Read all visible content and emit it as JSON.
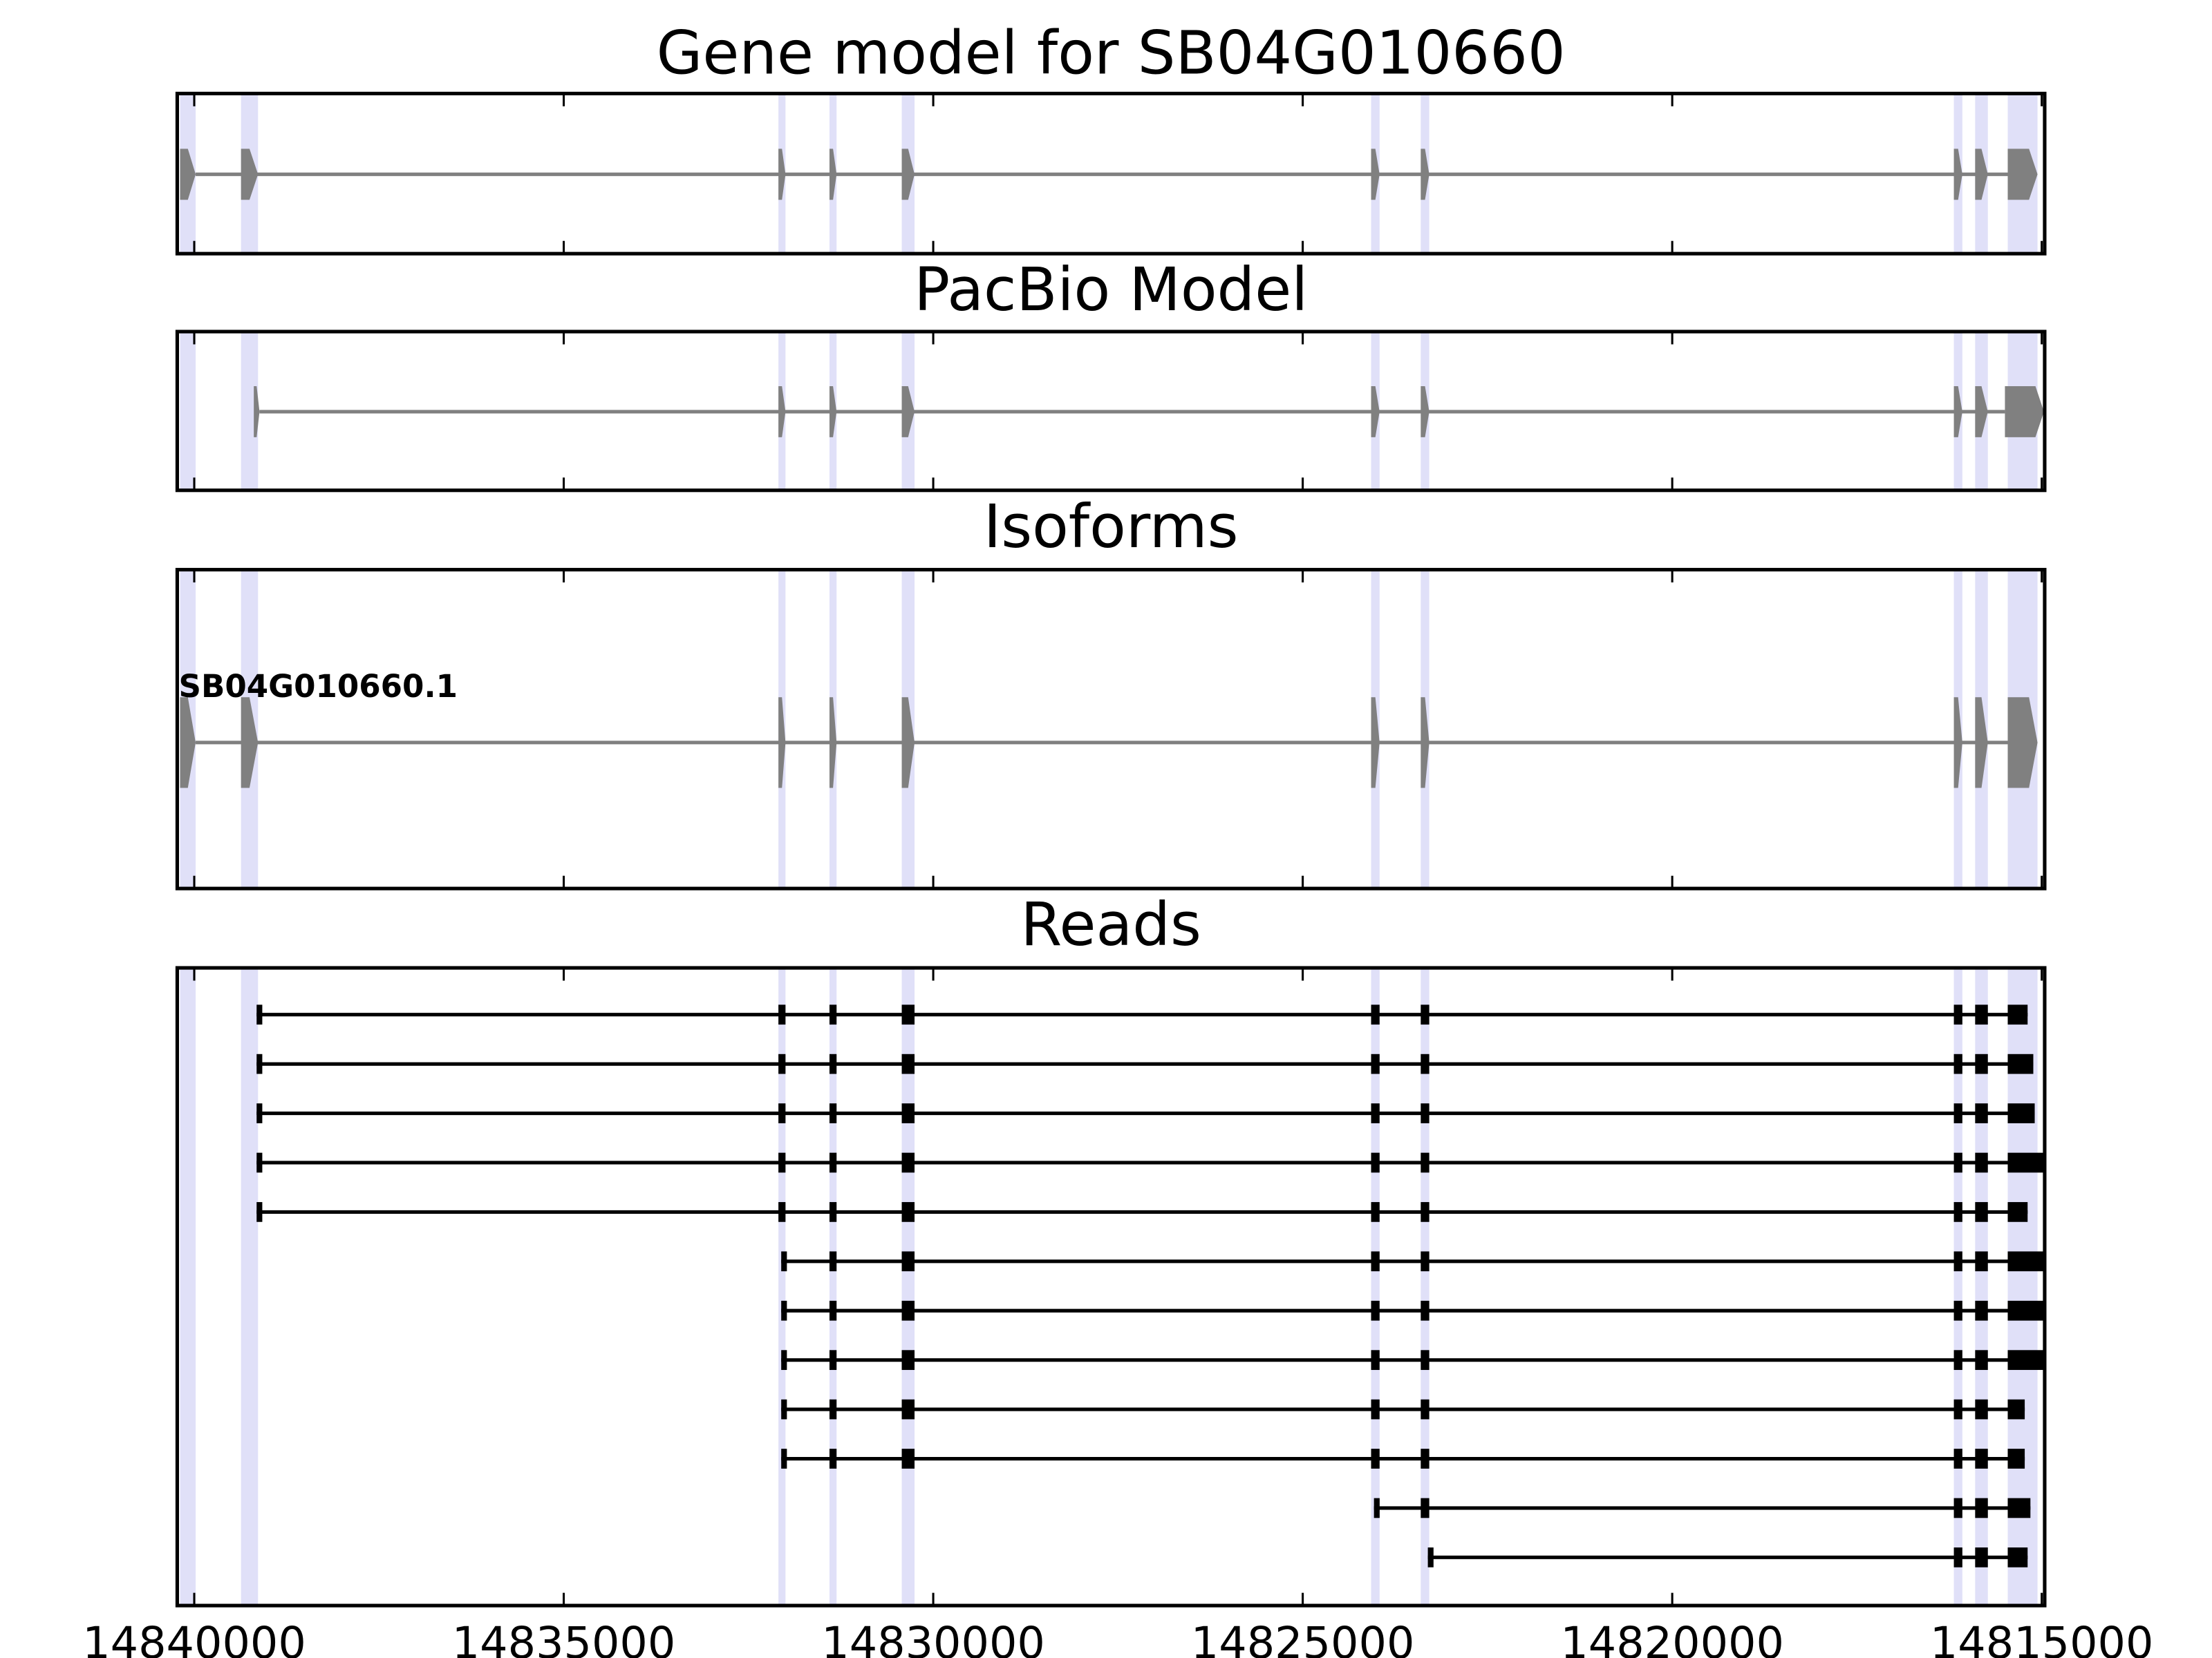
{
  "chart_data": {
    "type": "gene-track",
    "xlim": [
      14840230,
      14814960
    ],
    "xticks": [
      14840000,
      14835000,
      14830000,
      14825000,
      14820000,
      14815000
    ],
    "highlight_color": "#e0e0f8",
    "highlight": [
      [
        14840192,
        14839981
      ],
      [
        14839367,
        14839137
      ],
      [
        14832095,
        14831999
      ],
      [
        14831404,
        14831308
      ],
      [
        14830426,
        14830253
      ],
      [
        14824075,
        14823960
      ],
      [
        14823403,
        14823288
      ],
      [
        14816189,
        14816074
      ],
      [
        14815901,
        14815729
      ],
      [
        14815460,
        14815057
      ]
    ],
    "panels": [
      {
        "type": "gene",
        "title": "Gene model for SB04G010660",
        "color": "#808080",
        "exons": [
          [
            14840192,
            14839981
          ],
          [
            14839367,
            14839137
          ],
          [
            14832095,
            14831999
          ],
          [
            14831404,
            14831308
          ],
          [
            14830426,
            14830253
          ],
          [
            14824075,
            14823960
          ],
          [
            14823403,
            14823288
          ],
          [
            14816189,
            14816074
          ],
          [
            14815901,
            14815729
          ],
          [
            14815460,
            14815057
          ]
        ]
      },
      {
        "type": "gene",
        "title": "PacBio Model",
        "color": "#808080",
        "exons": [
          [
            14839194,
            14839117
          ],
          [
            14832095,
            14831999
          ],
          [
            14831404,
            14831308
          ],
          [
            14830426,
            14830253
          ],
          [
            14824075,
            14823960
          ],
          [
            14823403,
            14823288
          ],
          [
            14816189,
            14816074
          ],
          [
            14815901,
            14815729
          ],
          [
            14815498,
            14814970
          ]
        ]
      },
      {
        "type": "isoform",
        "title": "Isoforms",
        "label": "SB04G010660.1",
        "color": "#808080",
        "exons": [
          [
            14840192,
            14839981
          ],
          [
            14839367,
            14839137
          ],
          [
            14832095,
            14831999
          ],
          [
            14831404,
            14831308
          ],
          [
            14830426,
            14830253
          ],
          [
            14824075,
            14823960
          ],
          [
            14823403,
            14823288
          ],
          [
            14816189,
            14816074
          ],
          [
            14815901,
            14815729
          ],
          [
            14815460,
            14815057
          ]
        ]
      },
      {
        "type": "reads",
        "title": "Reads",
        "color": "#000000",
        "reads": [
          {
            "start": 14839156,
            "end": 14815191
          },
          {
            "start": 14839156,
            "end": 14815114
          },
          {
            "start": 14839156,
            "end": 14815095
          },
          {
            "start": 14839156,
            "end": 14814970
          },
          {
            "start": 14839156,
            "end": 14815191
          },
          {
            "start": 14832057,
            "end": 14814970
          },
          {
            "start": 14832057,
            "end": 14814970
          },
          {
            "start": 14832057,
            "end": 14814970
          },
          {
            "start": 14832057,
            "end": 14815230
          },
          {
            "start": 14832057,
            "end": 14815230
          },
          {
            "start": 14824036,
            "end": 14815153
          },
          {
            "start": 14823307,
            "end": 14815191
          }
        ]
      }
    ]
  }
}
